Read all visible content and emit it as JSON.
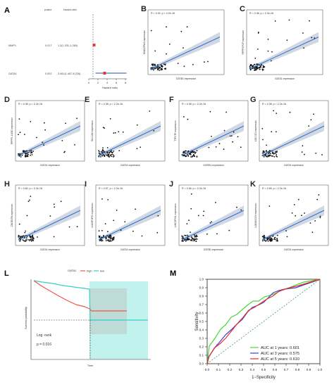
{
  "panels": {
    "A": {
      "letter": "A",
      "headers": [
        "pvalue",
        "Hazard ratio"
      ],
      "rows": [
        {
          "gene": "MMP1",
          "pvalue": "0.017",
          "hr_text": "1.2(1.031-1.280)",
          "hr": 1.15,
          "lo": 1.03,
          "hi": 1.28
        },
        {
          "gene": "GATA1",
          "pvalue": "0.002",
          "hr_text": "3.461(1.467-8.226)",
          "hr": 3.461,
          "lo": 1.467,
          "hi": 8.226
        }
      ],
      "ticks": [
        "0",
        "2",
        "4",
        "6",
        "8"
      ],
      "xlabel": "Hazard ratio"
    },
    "scatters": [
      {
        "id": "B",
        "letter": "B",
        "stat": "R = 0.32, p = 2.2e-16",
        "xlabel": "GZEB1 expression",
        "ylabel": "MNDCPM4 expression"
      },
      {
        "id": "C",
        "letter": "C",
        "stat": "R = 0.38, p = 2.2e-16",
        "xlabel": "GATA1 expression",
        "ylabel": "PPPP1P1P expression"
      },
      {
        "id": "D",
        "letter": "D",
        "stat": "R = 0.38, p = 2.2e-16",
        "xlabel": "GATA1 expression",
        "ylabel": "PPPP1 LUSD expression"
      },
      {
        "id": "E",
        "letter": "E",
        "stat": "R = 0.38, p = 2.2e-16",
        "xlabel": "GATA1 expression",
        "ylabel": "SLC1A6 expression"
      },
      {
        "id": "F",
        "letter": "F",
        "stat": "R = 0.38, p = 2.2e-16",
        "xlabel": "GIZEB1 expression",
        "ylabel": "TTFLTP expression"
      },
      {
        "id": "G",
        "letter": "G",
        "stat": "R = 0.38, p = 2.2e-16",
        "xlabel": "GATA1 expression",
        "ylabel": "LOC01N expression"
      },
      {
        "id": "H",
        "letter": "H",
        "stat": "R = 0.60, p = 2.2e-16",
        "xlabel": "GATA1 expression",
        "ylabel": "ZNGELPA expression"
      },
      {
        "id": "I",
        "letter": "I",
        "stat": "R = 0.57, p = 2.2e-16",
        "xlabel": "GATA1 expression",
        "ylabel": "LNC6P1PG expression"
      },
      {
        "id": "J",
        "letter": "J",
        "stat": "R = 0.56, p = 2.2e-16",
        "xlabel": "GZEB1 expression",
        "ylabel": "LINC5PVIL expression"
      },
      {
        "id": "K",
        "letter": "K",
        "stat": "R = 0.55, p = 2.2e-16",
        "xlabel": "GATA1 expression",
        "ylabel": "LOC6N01N expression"
      }
    ],
    "L": {
      "letter": "L",
      "legend_title": "GATA1",
      "legend_high": "high",
      "legend_low": "low",
      "ylabel": "Survival probability",
      "xlabel": "Time",
      "logrank": "Log -rank",
      "pvalue": "p = 0.016",
      "high_color": "#f0564f",
      "low_color": "#35cfc2"
    },
    "M": {
      "letter": "M",
      "ylabel": "Sensitivity",
      "xlabel": "1−Specificity",
      "ticks": [
        "0.0",
        "0.1",
        "0.2",
        "0.3",
        "0.4",
        "0.5",
        "0.6",
        "0.7",
        "0.8",
        "0.9",
        "1.0"
      ],
      "legend": [
        {
          "label": "AUC at 1 years: 0.601",
          "color": "#4cd638"
        },
        {
          "label": "AUC at 3 years: 0.575",
          "color": "#3344d6"
        },
        {
          "label": "AUC at 5 years: 0.610",
          "color": "#ee2a2a"
        }
      ]
    }
  }
}
